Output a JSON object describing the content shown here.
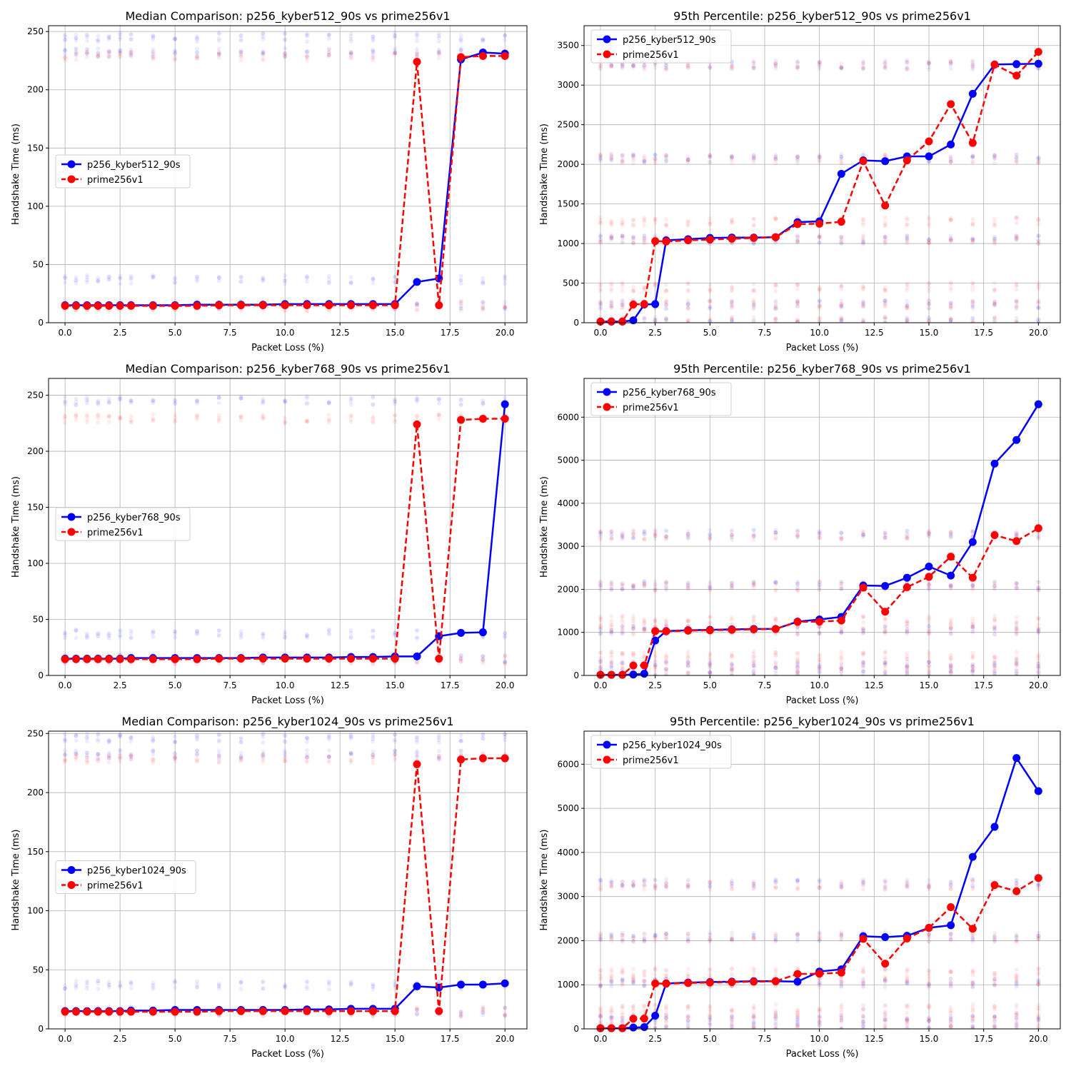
{
  "colors": {
    "series_a": "#0000ff",
    "series_b": "#ff0000",
    "grid": "#b0b0b0"
  },
  "chart_data": [
    {
      "type": "line",
      "title": "Median Comparison: p256_kyber512_90s vs prime256v1",
      "xlabel": "Packet Loss (%)",
      "ylabel": "Handshake Time (ms)",
      "xlim": [
        -0.75,
        21
      ],
      "ylim": [
        0,
        255
      ],
      "xticks": [
        0.0,
        2.5,
        5.0,
        7.5,
        10.0,
        12.5,
        15.0,
        17.5,
        20.0
      ],
      "yticks": [
        0,
        50,
        100,
        150,
        200,
        250
      ],
      "grid": true,
      "legend": "center-left",
      "x": [
        0,
        0.5,
        1,
        1.5,
        2,
        2.5,
        3,
        4,
        5,
        6,
        7,
        8,
        9,
        10,
        11,
        12,
        13,
        14,
        15,
        16,
        17,
        18,
        19,
        20
      ],
      "series": [
        {
          "name": "p256_kyber512_90s",
          "style": "solid",
          "values": [
            15,
            15,
            15,
            15,
            15,
            15,
            15,
            15,
            15,
            15.5,
            15.5,
            15.5,
            15.5,
            16,
            16,
            16,
            16,
            16,
            16,
            35,
            38,
            226,
            232,
            231
          ]
        },
        {
          "name": "prime256v1",
          "style": "dashed",
          "values": [
            14.5,
            14.5,
            14.5,
            14.5,
            14.5,
            14.5,
            14.5,
            14.5,
            14.5,
            14.5,
            15,
            15,
            15,
            15,
            15,
            15,
            15,
            15,
            15,
            224,
            15,
            228,
            229,
            229
          ]
        }
      ],
      "scatter_bands": [
        {
          "series": "p256_kyber512_90s",
          "y": [
            15,
            37,
            232,
            245
          ]
        },
        {
          "series": "prime256v1",
          "y": [
            14,
            229
          ]
        }
      ]
    },
    {
      "type": "line",
      "title": "95th Percentile: p256_kyber512_90s vs prime256v1",
      "xlabel": "Packet Loss (%)",
      "ylabel": "Handshake Time (ms)",
      "xlim": [
        -0.75,
        21
      ],
      "ylim": [
        0,
        3750
      ],
      "xticks": [
        0.0,
        2.5,
        5.0,
        7.5,
        10.0,
        12.5,
        15.0,
        17.5,
        20.0
      ],
      "yticks": [
        0,
        500,
        1000,
        1500,
        2000,
        2500,
        3000,
        3500
      ],
      "grid": true,
      "legend": "top-left",
      "x": [
        0,
        0.5,
        1,
        1.5,
        2,
        2.5,
        3,
        4,
        5,
        6,
        7,
        8,
        9,
        10,
        11,
        12,
        13,
        14,
        15,
        16,
        17,
        18,
        19,
        20
      ],
      "series": [
        {
          "name": "p256_kyber512_90s",
          "style": "solid",
          "values": [
            15,
            15,
            15,
            30,
            230,
            235,
            1040,
            1055,
            1070,
            1075,
            1075,
            1080,
            1270,
            1280,
            1880,
            2050,
            2040,
            2100,
            2100,
            2250,
            2890,
            3260,
            3265,
            3270
          ]
        },
        {
          "name": "prime256v1",
          "style": "dashed",
          "values": [
            15,
            15,
            15,
            230,
            235,
            1030,
            1025,
            1040,
            1050,
            1060,
            1070,
            1080,
            1245,
            1250,
            1275,
            2040,
            1480,
            2050,
            2290,
            2760,
            2270,
            3260,
            3120,
            3420
          ]
        }
      ],
      "scatter_bands": [
        {
          "series": "p256_kyber512_90s",
          "y": [
            15,
            230,
            1050,
            2080,
            3260
          ]
        },
        {
          "series": "prime256v1",
          "y": [
            15,
            230,
            450,
            1050,
            1280,
            2070,
            3250
          ]
        }
      ]
    },
    {
      "type": "line",
      "title": "Median Comparison: p256_kyber768_90s vs prime256v1",
      "xlabel": "Packet Loss (%)",
      "ylabel": "Handshake Time (ms)",
      "xlim": [
        -0.75,
        21
      ],
      "ylim": [
        0,
        265
      ],
      "xticks": [
        0.0,
        2.5,
        5.0,
        7.5,
        10.0,
        12.5,
        15.0,
        17.5,
        20.0
      ],
      "yticks": [
        0,
        50,
        100,
        150,
        200,
        250
      ],
      "grid": true,
      "legend": "center-left",
      "x": [
        0,
        0.5,
        1,
        1.5,
        2,
        2.5,
        3,
        4,
        5,
        6,
        7,
        8,
        9,
        10,
        11,
        12,
        13,
        14,
        15,
        16,
        17,
        18,
        19,
        20
      ],
      "series": [
        {
          "name": "p256_kyber768_90s",
          "style": "solid",
          "values": [
            15,
            15,
            15,
            15,
            15,
            15,
            15.5,
            15.5,
            15.5,
            15.5,
            15.5,
            15.5,
            16,
            16,
            16,
            16,
            16.5,
            16.5,
            17,
            17,
            35,
            38,
            38.5,
            242
          ]
        },
        {
          "name": "prime256v1",
          "style": "dashed",
          "values": [
            14.5,
            14.5,
            14.5,
            14.5,
            14.5,
            14.5,
            14.5,
            14.5,
            14.5,
            14.5,
            15,
            15,
            15,
            15,
            15,
            15,
            15,
            15,
            15,
            224,
            15,
            228,
            229,
            229
          ]
        }
      ],
      "scatter_bands": [
        {
          "series": "p256_kyber768_90s",
          "y": [
            15,
            37,
            245
          ]
        },
        {
          "series": "prime256v1",
          "y": [
            14,
            229
          ]
        }
      ]
    },
    {
      "type": "line",
      "title": "95th Percentile: p256_kyber768_90s vs prime256v1",
      "xlabel": "Packet Loss (%)",
      "ylabel": "Handshake Time (ms)",
      "xlim": [
        -0.75,
        21
      ],
      "ylim": [
        0,
        6900
      ],
      "xticks": [
        0.0,
        2.5,
        5.0,
        7.5,
        10.0,
        12.5,
        15.0,
        17.5,
        20.0
      ],
      "yticks": [
        0,
        1000,
        2000,
        3000,
        4000,
        5000,
        6000
      ],
      "grid": true,
      "legend": "top-left",
      "x": [
        0,
        0.5,
        1,
        1.5,
        2,
        2.5,
        3,
        4,
        5,
        6,
        7,
        8,
        9,
        10,
        11,
        12,
        13,
        14,
        15,
        16,
        17,
        18,
        19,
        20
      ],
      "series": [
        {
          "name": "p256_kyber768_90s",
          "style": "solid",
          "values": [
            15,
            15,
            15,
            20,
            40,
            810,
            1030,
            1050,
            1060,
            1070,
            1080,
            1080,
            1250,
            1300,
            1360,
            2090,
            2080,
            2270,
            2530,
            2320,
            3100,
            4920,
            5470,
            6300
          ]
        },
        {
          "name": "prime256v1",
          "style": "dashed",
          "values": [
            15,
            15,
            15,
            230,
            235,
            1030,
            1025,
            1040,
            1050,
            1060,
            1070,
            1080,
            1245,
            1250,
            1275,
            2040,
            1480,
            2050,
            2290,
            2760,
            2270,
            3260,
            3120,
            3420
          ]
        }
      ],
      "scatter_bands": [
        {
          "series": "p256_kyber768_90s",
          "y": [
            15,
            230,
            1050,
            2090,
            3280
          ]
        },
        {
          "series": "prime256v1",
          "y": [
            15,
            230,
            450,
            1050,
            1280,
            2070,
            3250
          ]
        }
      ]
    },
    {
      "type": "line",
      "title": "Median Comparison: p256_kyber1024_90s vs prime256v1",
      "xlabel": "Packet Loss (%)",
      "ylabel": "Handshake Time (ms)",
      "xlim": [
        -0.75,
        21
      ],
      "ylim": [
        0,
        252
      ],
      "xticks": [
        0.0,
        2.5,
        5.0,
        7.5,
        10.0,
        12.5,
        15.0,
        17.5,
        20.0
      ],
      "yticks": [
        0,
        50,
        100,
        150,
        200,
        250
      ],
      "grid": true,
      "legend": "center-left",
      "x": [
        0,
        0.5,
        1,
        1.5,
        2,
        2.5,
        3,
        4,
        5,
        6,
        7,
        8,
        9,
        10,
        11,
        12,
        13,
        14,
        15,
        16,
        17,
        18,
        19,
        20
      ],
      "series": [
        {
          "name": "p256_kyber1024_90s",
          "style": "solid",
          "values": [
            15,
            15,
            15,
            15,
            15,
            15,
            15.5,
            15.5,
            16,
            16,
            16,
            16,
            16,
            16,
            16.5,
            16.5,
            17,
            17,
            17,
            36,
            35,
            37.5,
            37.5,
            38.5
          ]
        },
        {
          "name": "prime256v1",
          "style": "dashed",
          "values": [
            14.5,
            14.5,
            14.5,
            14.5,
            14.5,
            14.5,
            14.5,
            14.5,
            14.5,
            14.5,
            15,
            15,
            15,
            15,
            15,
            15,
            15,
            15,
            15,
            224,
            15,
            228,
            229,
            229
          ]
        }
      ],
      "scatter_bands": [
        {
          "series": "p256_kyber1024_90s",
          "y": [
            15,
            37,
            232,
            246
          ]
        },
        {
          "series": "prime256v1",
          "y": [
            14,
            229
          ]
        }
      ]
    },
    {
      "type": "line",
      "title": "95th Percentile: p256_kyber1024_90s vs prime256v1",
      "xlabel": "Packet Loss (%)",
      "ylabel": "Handshake Time (ms)",
      "xlim": [
        -0.75,
        21
      ],
      "ylim": [
        0,
        6750
      ],
      "xticks": [
        0.0,
        2.5,
        5.0,
        7.5,
        10.0,
        12.5,
        15.0,
        17.5,
        20.0
      ],
      "yticks": [
        0,
        1000,
        2000,
        3000,
        4000,
        5000,
        6000
      ],
      "grid": true,
      "legend": "top-left",
      "x": [
        0,
        0.5,
        1,
        1.5,
        2,
        2.5,
        3,
        4,
        5,
        6,
        7,
        8,
        9,
        10,
        11,
        12,
        13,
        14,
        15,
        16,
        17,
        18,
        19,
        20
      ],
      "series": [
        {
          "name": "p256_kyber1024_90s",
          "style": "solid",
          "values": [
            15,
            15,
            15,
            30,
            40,
            300,
            1030,
            1050,
            1060,
            1070,
            1080,
            1080,
            1070,
            1300,
            1350,
            2100,
            2080,
            2110,
            2290,
            2350,
            3900,
            4580,
            6140,
            5390
          ]
        },
        {
          "name": "prime256v1",
          "style": "dashed",
          "values": [
            15,
            15,
            15,
            230,
            235,
            1030,
            1025,
            1040,
            1050,
            1060,
            1070,
            1080,
            1245,
            1250,
            1275,
            2040,
            1480,
            2050,
            2290,
            2760,
            2270,
            3260,
            3120,
            3420
          ]
        }
      ],
      "scatter_bands": [
        {
          "series": "p256_kyber1024_90s",
          "y": [
            15,
            230,
            1050,
            2090,
            3300
          ]
        },
        {
          "series": "prime256v1",
          "y": [
            15,
            230,
            450,
            1050,
            1280,
            2070,
            3250
          ]
        }
      ]
    }
  ]
}
